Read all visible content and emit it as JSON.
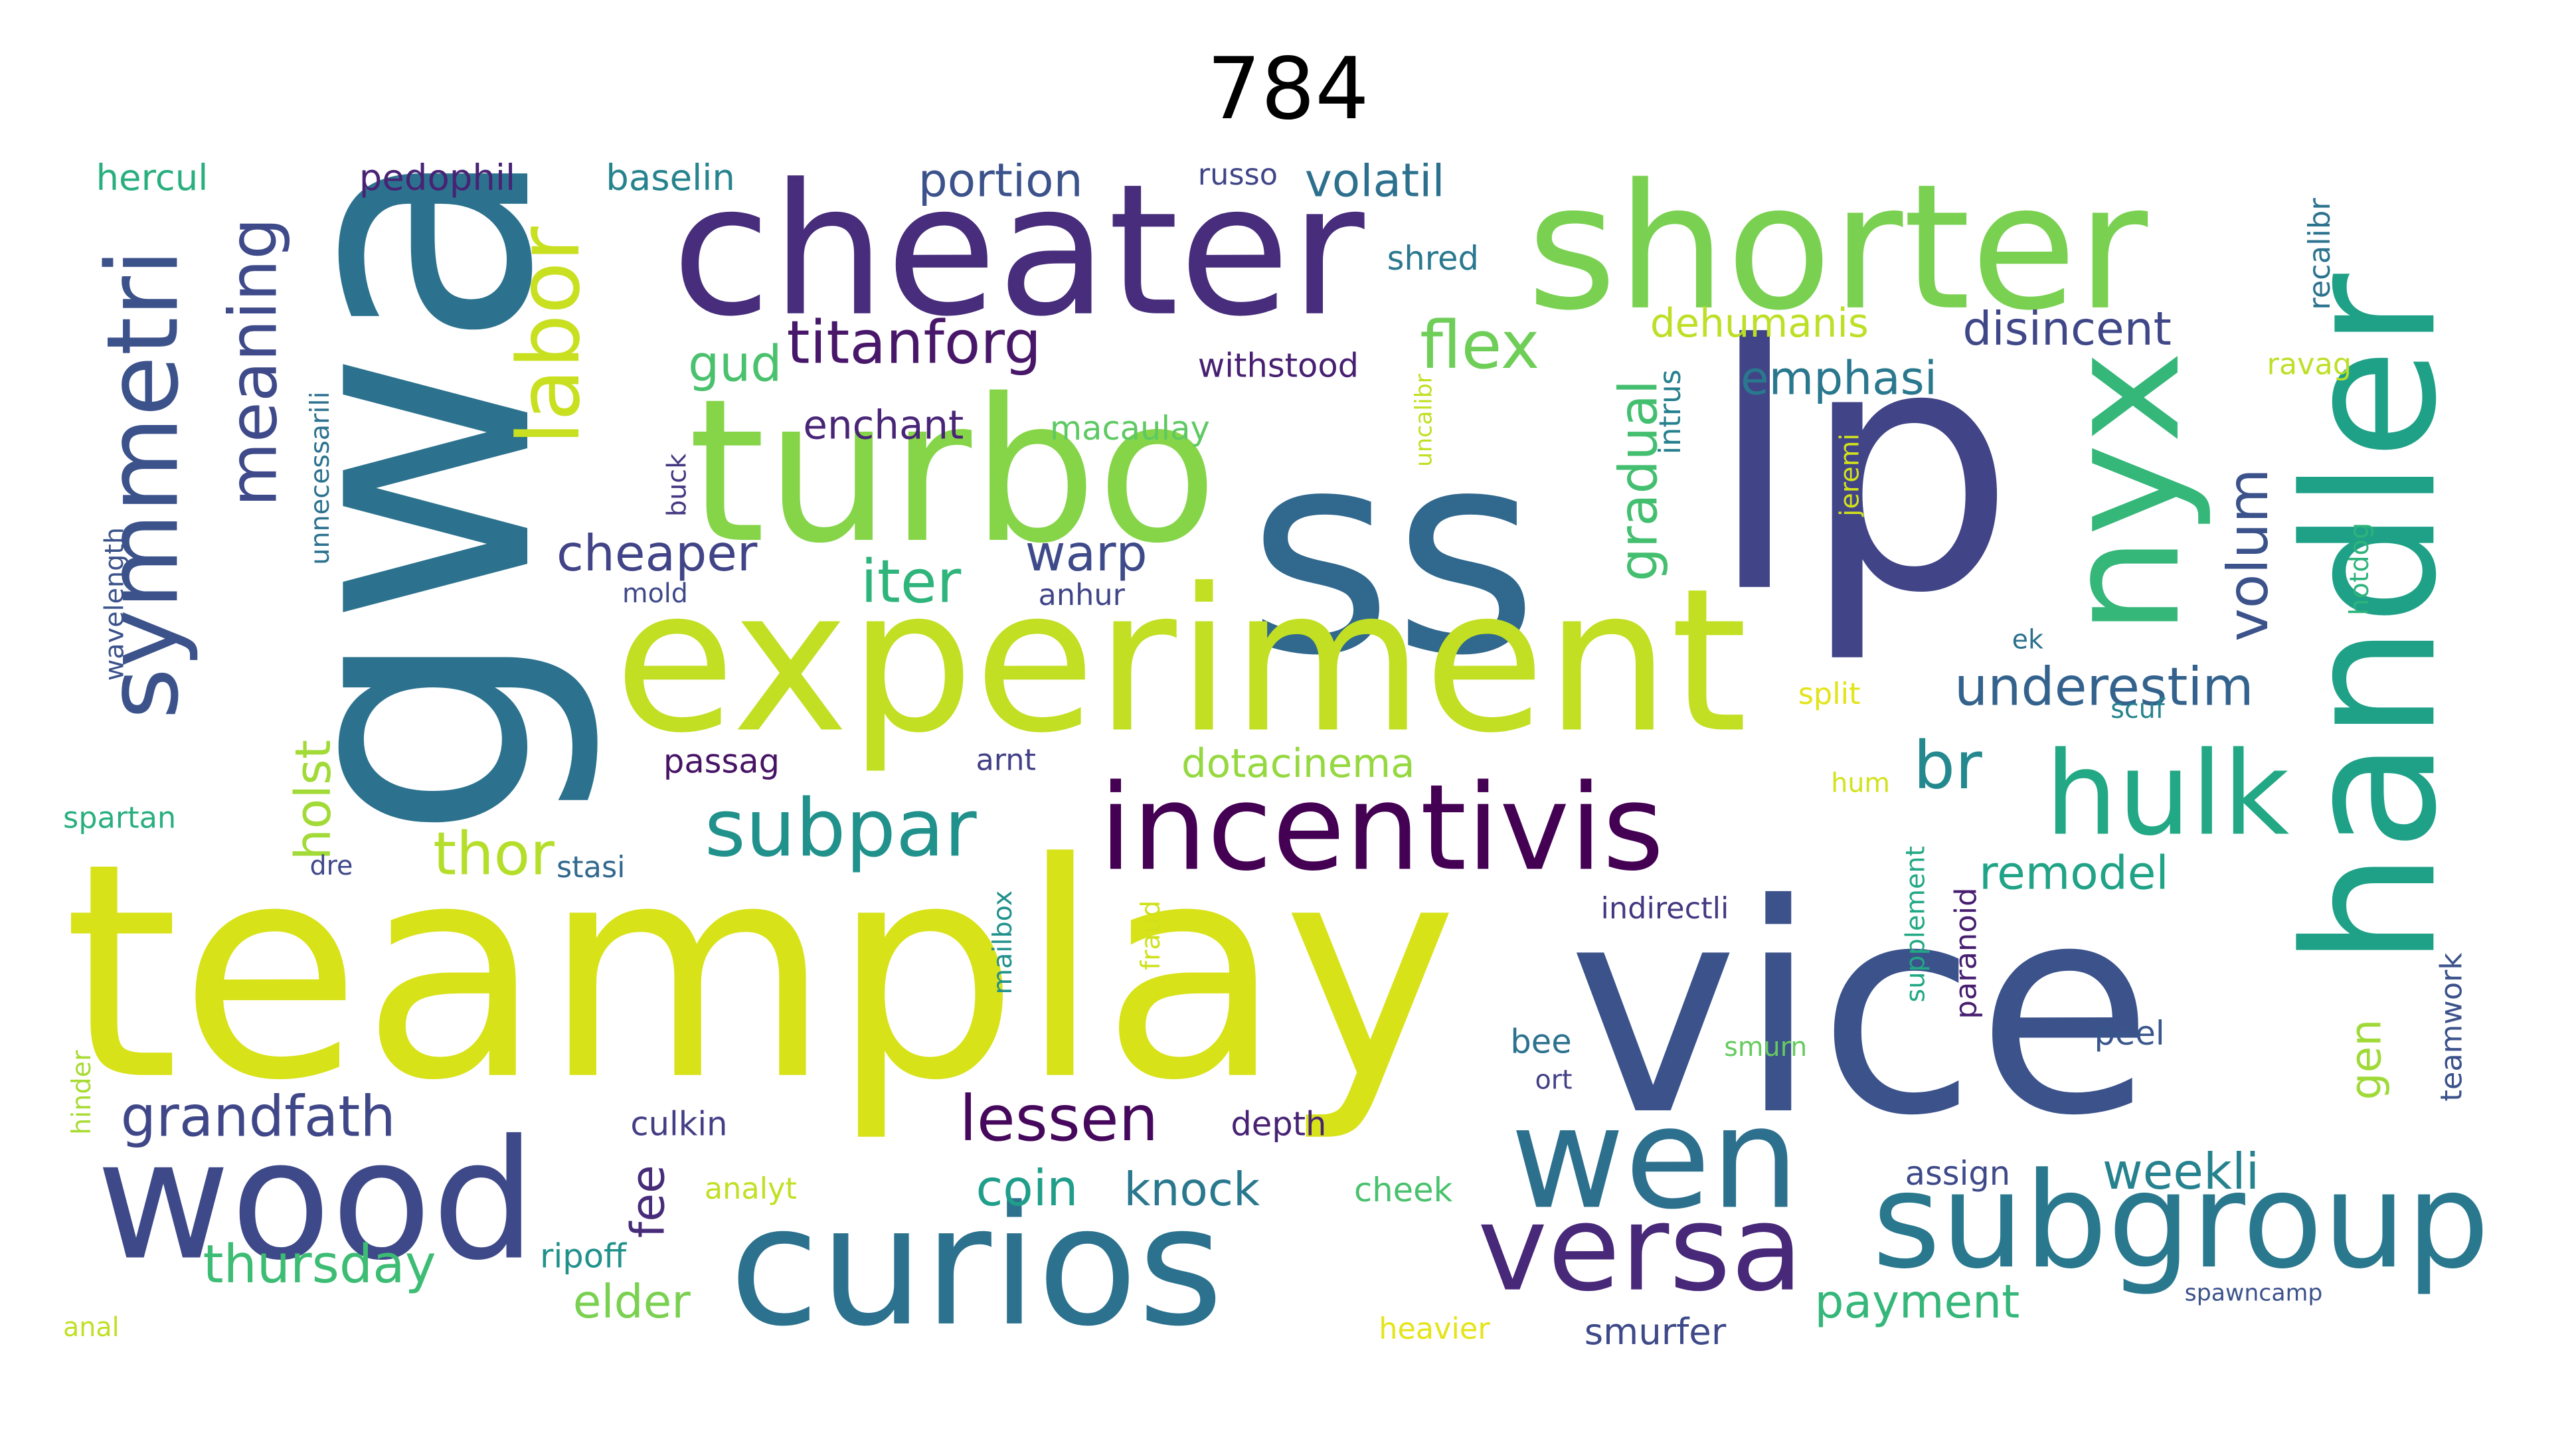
{
  "title": "784",
  "chart_data": {
    "type": "wordcloud",
    "title": "784",
    "words": [
      {
        "text": "teamplay",
        "color": "#d8e219"
      },
      {
        "text": "vice",
        "color": "#3b528b"
      },
      {
        "text": "ss",
        "color": "#31688e"
      },
      {
        "text": "lp",
        "color": "#414487"
      },
      {
        "text": "gwa",
        "color": "#2c728e"
      },
      {
        "text": "experiment",
        "color": "#c2df23"
      },
      {
        "text": "turbo",
        "color": "#86d549"
      },
      {
        "text": "cheater",
        "color": "#472d7b"
      },
      {
        "text": "shorter",
        "color": "#7ad151"
      },
      {
        "text": "handler",
        "color": "#1fa187"
      },
      {
        "text": "curios",
        "color": "#2c728e"
      },
      {
        "text": "wood",
        "color": "#3e4989"
      },
      {
        "text": "incentivis",
        "color": "#440154"
      },
      {
        "text": "subgroup",
        "color": "#2a788e"
      },
      {
        "text": "wen",
        "color": "#2d708e"
      },
      {
        "text": "nyx",
        "color": "#35b779"
      },
      {
        "text": "versa",
        "color": "#482878"
      },
      {
        "text": "hulk",
        "color": "#22a884"
      },
      {
        "text": "symmetri",
        "color": "#3b528b"
      },
      {
        "text": "labor",
        "color": "#c8e020"
      },
      {
        "text": "meaning",
        "color": "#3e4a89"
      },
      {
        "text": "subpar",
        "color": "#21918c"
      },
      {
        "text": "titanforg",
        "color": "#481769"
      },
      {
        "text": "flex",
        "color": "#6ece58"
      },
      {
        "text": "gradual",
        "color": "#44bf70"
      },
      {
        "text": "volum",
        "color": "#3b528b"
      },
      {
        "text": "grandfath",
        "color": "#3f4788"
      },
      {
        "text": "lessen",
        "color": "#46085c"
      },
      {
        "text": "thor",
        "color": "#b5de2b"
      },
      {
        "text": "holst",
        "color": "#a2da37"
      },
      {
        "text": "br",
        "color": "#23898e"
      },
      {
        "text": "iter",
        "color": "#2fb47c"
      },
      {
        "text": "cheaper",
        "color": "#414487"
      },
      {
        "text": "warp",
        "color": "#3e4a89"
      },
      {
        "text": "gud",
        "color": "#4ac16d"
      },
      {
        "text": "emphasi",
        "color": "#2a788e"
      },
      {
        "text": "underestim",
        "color": "#33628d"
      },
      {
        "text": "disincent",
        "color": "#3f4788"
      },
      {
        "text": "remodel",
        "color": "#20a386"
      },
      {
        "text": "thursday",
        "color": "#3dbc74"
      },
      {
        "text": "coin",
        "color": "#1f9e89"
      },
      {
        "text": "knock",
        "color": "#2a788e"
      },
      {
        "text": "weekli",
        "color": "#26828e"
      },
      {
        "text": "payment",
        "color": "#35b779"
      },
      {
        "text": "elder",
        "color": "#7ad151"
      },
      {
        "text": "fee",
        "color": "#472c7a"
      },
      {
        "text": "gen",
        "color": "#a0da39"
      },
      {
        "text": "dotacinema",
        "color": "#95d840"
      },
      {
        "text": "enchant",
        "color": "#482576"
      },
      {
        "text": "macaulay",
        "color": "#5ec962"
      },
      {
        "text": "withstood",
        "color": "#482071"
      },
      {
        "text": "dehumanis",
        "color": "#bddf26"
      },
      {
        "text": "shred",
        "color": "#2a788e"
      },
      {
        "text": "volatil",
        "color": "#2d708e"
      },
      {
        "text": "portion",
        "color": "#3b528b"
      },
      {
        "text": "russo",
        "color": "#404588"
      },
      {
        "text": "baselin",
        "color": "#25838e"
      },
      {
        "text": "pedophil",
        "color": "#482374"
      },
      {
        "text": "hercul",
        "color": "#29af7f"
      },
      {
        "text": "wavelength",
        "color": "#3b528b"
      },
      {
        "text": "unnecessarili",
        "color": "#2c728e"
      },
      {
        "text": "buck",
        "color": "#453781"
      },
      {
        "text": "mold",
        "color": "#3e4989"
      },
      {
        "text": "anhur",
        "color": "#404588"
      },
      {
        "text": "intrus",
        "color": "#27808e"
      },
      {
        "text": "uncalibr",
        "color": "#c2df23"
      },
      {
        "text": "jeremi",
        "color": "#d2e21b"
      },
      {
        "text": "recalibr",
        "color": "#2c738e"
      },
      {
        "text": "ravag",
        "color": "#bddf26"
      },
      {
        "text": "hotdog",
        "color": "#2eb37c"
      },
      {
        "text": "ek",
        "color": "#2c728e"
      },
      {
        "text": "split",
        "color": "#e2e418"
      },
      {
        "text": "scuf",
        "color": "#25848e"
      },
      {
        "text": "hum",
        "color": "#d2e21b"
      },
      {
        "text": "passag",
        "color": "#471365"
      },
      {
        "text": "arnt",
        "color": "#424086"
      },
      {
        "text": "spartan",
        "color": "#29af7f"
      },
      {
        "text": "dre",
        "color": "#3f4889"
      },
      {
        "text": "stasi",
        "color": "#31688e"
      },
      {
        "text": "indirectli",
        "color": "#453882"
      },
      {
        "text": "mailbox",
        "color": "#21918c"
      },
      {
        "text": "fraud",
        "color": "#d0e11c"
      },
      {
        "text": "supplement",
        "color": "#22a884"
      },
      {
        "text": "paranoid",
        "color": "#481f70"
      },
      {
        "text": "teamwork",
        "color": "#3b528b"
      },
      {
        "text": "peel",
        "color": "#39568c"
      },
      {
        "text": "bee",
        "color": "#2c728e"
      },
      {
        "text": "ort",
        "color": "#424086"
      },
      {
        "text": "smurn",
        "color": "#65cb5e"
      },
      {
        "text": "spawncamp",
        "color": "#3b528b"
      },
      {
        "text": "assign",
        "color": "#3e4989"
      },
      {
        "text": "depth",
        "color": "#482374"
      },
      {
        "text": "cheek",
        "color": "#4ac16d"
      },
      {
        "text": "culkin",
        "color": "#433e85"
      },
      {
        "text": "analyt",
        "color": "#c2df23"
      },
      {
        "text": "ripoff",
        "color": "#21918c"
      },
      {
        "text": "anal",
        "color": "#c2df23"
      },
      {
        "text": "hinder",
        "color": "#a8db34"
      },
      {
        "text": "heavier",
        "color": "#e5e419"
      },
      {
        "text": "smurfer",
        "color": "#3e4989"
      }
    ]
  }
}
